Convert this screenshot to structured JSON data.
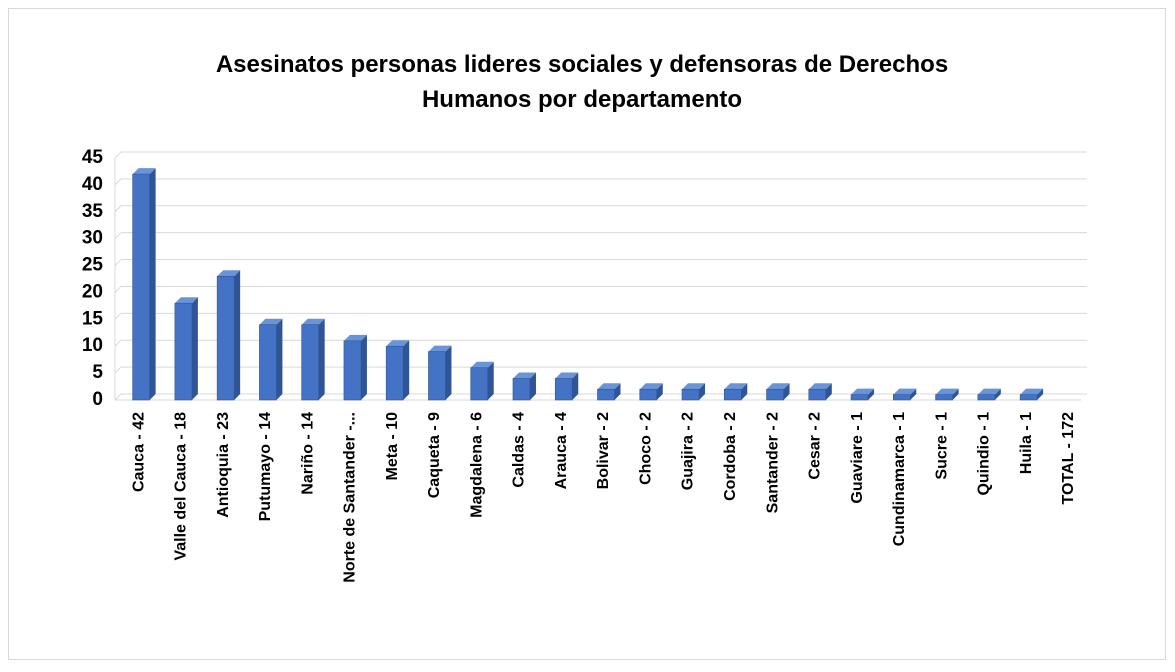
{
  "chart_data": {
    "type": "bar3d",
    "title": [
      "Asesinatos personas lideres sociales y defensoras de Derechos",
      "Humanos por departamento"
    ],
    "categories": [
      "Cauca - 42",
      "Valle del Cauca - 18",
      "Antioquia - 23",
      "Putumayo - 14",
      "Nariño - 14",
      "Norte de Santander -...",
      "Meta - 10",
      "Caqueta - 9",
      "Magdalena - 6",
      "Caldas - 4",
      "Arauca - 4",
      "Bolivar - 2",
      "Choco - 2",
      "Guajira - 2",
      "Cordoba - 2",
      "Santander - 2",
      "Cesar - 2",
      "Guaviare - 1",
      "Cundinamarca - 1",
      "Sucre - 1",
      "Quindio - 1",
      "Huila - 1",
      "TOTAL - 172"
    ],
    "values": [
      42,
      18,
      23,
      14,
      14,
      11,
      10,
      9,
      6,
      4,
      4,
      2,
      2,
      2,
      2,
      2,
      2,
      1,
      1,
      1,
      1,
      1,
      null
    ],
    "color": "#4472c4",
    "ylim": [
      0,
      45
    ],
    "yticks": [
      0,
      5,
      10,
      15,
      20,
      25,
      30,
      35,
      40,
      45
    ],
    "grid": true
  }
}
